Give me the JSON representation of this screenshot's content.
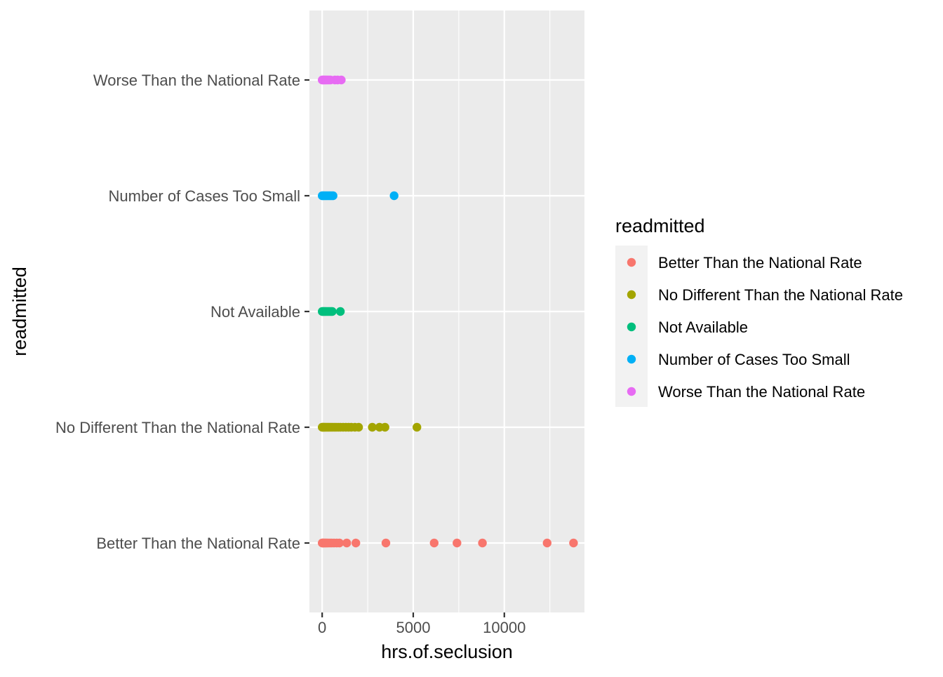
{
  "chart_data": {
    "type": "scatter",
    "title": "",
    "xlabel": "hrs.of.seclusion",
    "ylabel": "readmitted",
    "xlim": [
      -700,
      14400
    ],
    "x_ticks": [
      0,
      5000,
      10000
    ],
    "x_tick_labels": [
      "0",
      "5000",
      "10000"
    ],
    "x_minor_ticks": [
      2500,
      7500,
      12500
    ],
    "categories": [
      "Better Than the National Rate",
      "No Different Than the National Rate",
      "Not Available",
      "Number of Cases Too Small",
      "Worse Than the National Rate"
    ],
    "grid": true,
    "legend": {
      "title": "readmitted",
      "position": "right"
    },
    "series": [
      {
        "name": "Better Than the National Rate",
        "color": "#F8766D",
        "category": "Better Than the National Rate",
        "x": [
          0,
          30,
          60,
          100,
          150,
          200,
          260,
          330,
          420,
          520,
          650,
          800,
          950,
          1350,
          1850,
          3500,
          6150,
          7400,
          8800,
          12350,
          13800
        ]
      },
      {
        "name": "No Different Than the National Rate",
        "color": "#A3A500",
        "category": "No Different Than the National Rate",
        "x": [
          0,
          40,
          90,
          150,
          220,
          300,
          380,
          470,
          560,
          660,
          760,
          880,
          1000,
          1150,
          1300,
          1450,
          1600,
          1800,
          2000,
          2750,
          3150,
          3450,
          5200
        ]
      },
      {
        "name": "Not Available",
        "color": "#00BF7D",
        "category": "Not Available",
        "x": [
          0,
          50,
          110,
          170,
          240,
          320,
          400,
          480,
          550,
          1000
        ]
      },
      {
        "name": "Number of Cases Too Small",
        "color": "#00B0F6",
        "category": "Number of Cases Too Small",
        "x": [
          0,
          60,
          130,
          200,
          280,
          360,
          440,
          520,
          600,
          3950
        ]
      },
      {
        "name": "Worse Than the National Rate",
        "color": "#E76BF3",
        "category": "Worse Than the National Rate",
        "x": [
          0,
          50,
          100,
          160,
          220,
          290,
          370,
          460,
          700,
          850,
          1050
        ]
      }
    ]
  }
}
